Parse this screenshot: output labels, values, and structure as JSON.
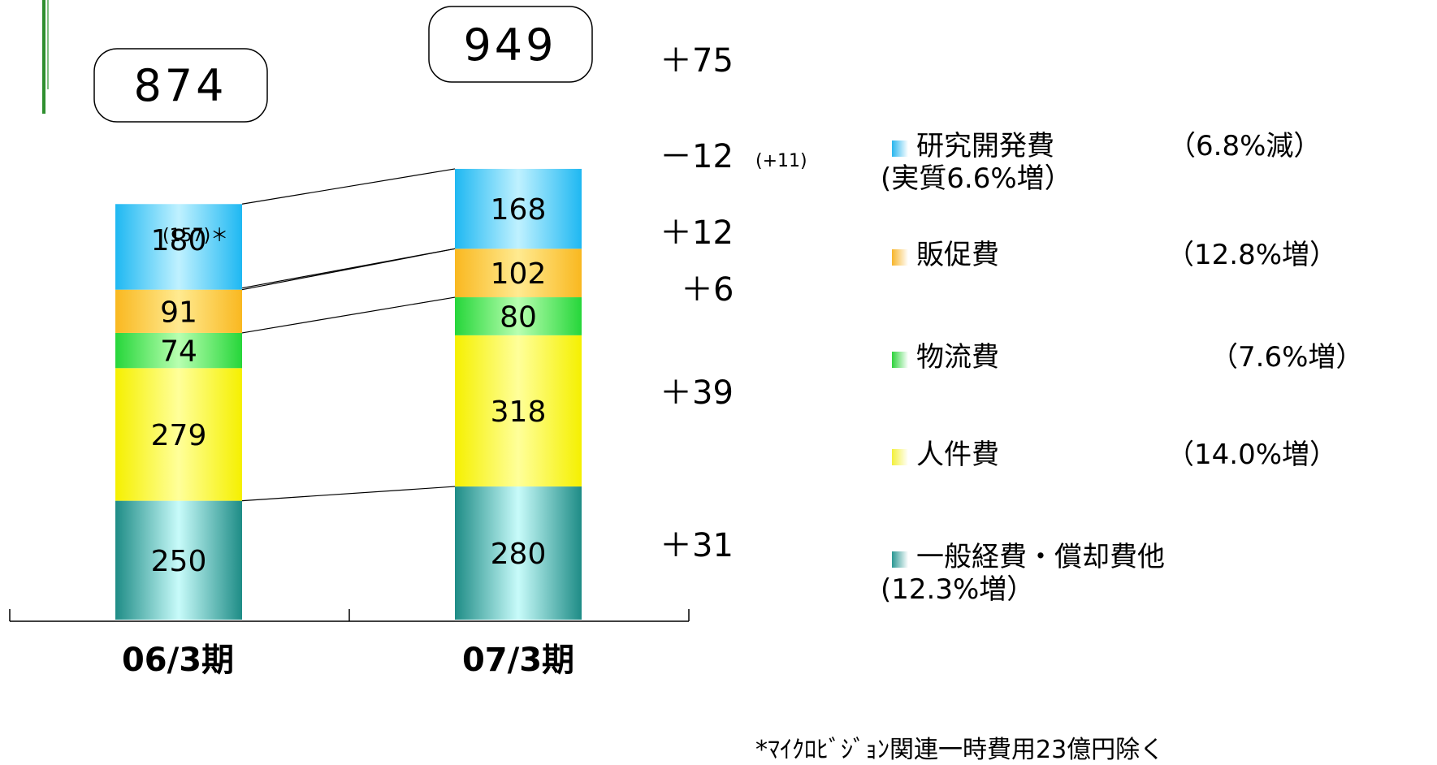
{
  "chart_data": {
    "type": "bar",
    "stacked": true,
    "categories": [
      "06/3期",
      "07/3期"
    ],
    "totals": [
      "874",
      "949"
    ],
    "series": [
      {
        "name": "一般経費・償却費他",
        "values": [
          250,
          280
        ],
        "color_top": "#1e8c86",
        "color_mid": "#c8fbfa"
      },
      {
        "name": "人件費",
        "values": [
          279,
          318
        ],
        "color_top": "#f5f000",
        "color_mid": "#ffff9a"
      },
      {
        "name": "物流費",
        "values": [
          74,
          80
        ],
        "color_top": "#26d63a",
        "color_mid": "#b8ffb0"
      },
      {
        "name": "販促費",
        "values": [
          91,
          102
        ],
        "color_top": "#f9b820",
        "color_mid": "#ffea90"
      },
      {
        "name": "研究開発費",
        "values": [
          180,
          168
        ],
        "color_top": "#1fb8f2",
        "color_mid": "#bff1ff"
      }
    ],
    "annotations": {
      "rd_real_06": "(157)＊",
      "rd_diff_note": "(+11)"
    },
    "differences": [
      "+75",
      "−12",
      "+12",
      "+6",
      "+39",
      "+31"
    ],
    "legend": [
      {
        "label": "研究開発費",
        "pct": "（6.8%減）",
        "sub": "(実質6.6%増）",
        "color": "#29b6ee"
      },
      {
        "label": "販促費",
        "pct": "（12.8%増）",
        "sub": "",
        "color": "#f7b52a"
      },
      {
        "label": "物流費",
        "pct": "（7.6%増）",
        "sub": "",
        "color": "#2ed33c"
      },
      {
        "label": "人件費",
        "pct": "（14.0%増）",
        "sub": "",
        "color": "#f3f03a"
      },
      {
        "label": "一般経費・償却費他",
        "pct": "",
        "sub": "(12.3%増）",
        "color": "#2a9893"
      }
    ]
  },
  "diff_labels": {
    "total": "＋75",
    "rd": "－12",
    "rd_note": "(+11)",
    "promo": "＋12",
    "logistics": "＋6",
    "personnel": "＋39",
    "general": "＋31"
  },
  "footnote": "*ﾏｲｸﾛﾋﾞｼﾞｮﾝ関連一時費用23億円除く"
}
